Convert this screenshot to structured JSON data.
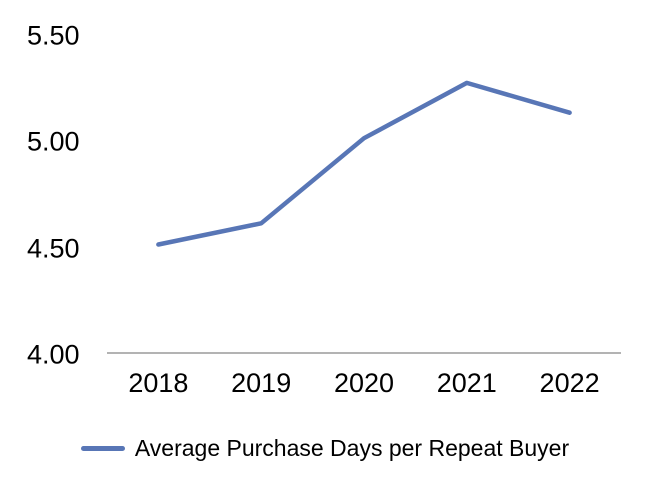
{
  "chart_data": {
    "type": "line",
    "categories": [
      "2018",
      "2019",
      "2020",
      "2021",
      "2022"
    ],
    "series": [
      {
        "name": "Average Purchase Days per Repeat Buyer",
        "values": [
          4.51,
          4.61,
          5.01,
          5.27,
          5.13
        ],
        "color": "#5876b6"
      }
    ],
    "ylim": [
      4.0,
      5.5
    ],
    "yticks": [
      5.5,
      5.0,
      4.5,
      4.0
    ],
    "ytick_labels": [
      "5.50",
      "5.00",
      "4.50",
      "4.00"
    ],
    "grid": false,
    "legend_position": "bottom",
    "axis_color": "#b3b3b3",
    "text_color": "#000000",
    "background": "#ffffff"
  },
  "legend": {
    "label": "Average Purchase Days per Repeat Buyer"
  }
}
